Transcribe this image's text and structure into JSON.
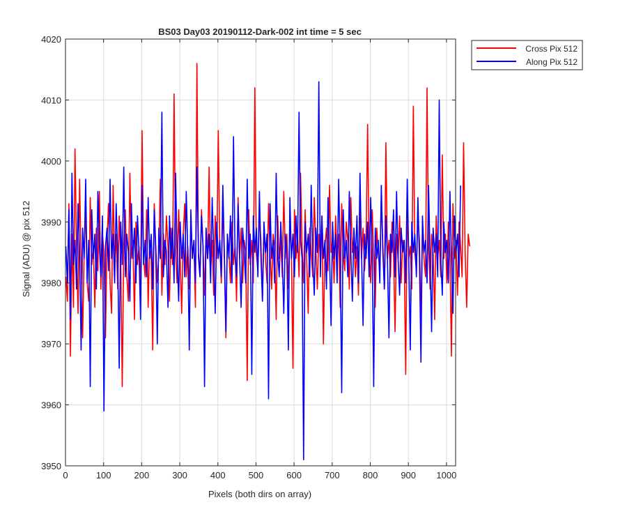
{
  "figure": {
    "background": "#ffffff"
  },
  "chart_data": {
    "type": "line",
    "title": "BS03 Day03 20190112-Dark-002 int time = 5 sec",
    "xlabel": "Pixels (both dirs on array)",
    "ylabel": "Signal (ADU) @ pix 512",
    "xlim": [
      0,
      1024
    ],
    "ylim": [
      3950,
      4020
    ],
    "xticks": [
      0,
      100,
      200,
      300,
      400,
      500,
      600,
      700,
      800,
      900,
      1000
    ],
    "yticks": [
      3950,
      3960,
      3970,
      3980,
      3990,
      4000,
      4010,
      4020
    ],
    "grid": true,
    "legend_position": "outside top-right",
    "series": [
      {
        "name": "Cross Pix 512",
        "color": "#ff0000",
        "x_start": 1,
        "x_step": 4,
        "values": [
          3981,
          3977,
          3993,
          3968,
          3988,
          3976,
          4002,
          3986,
          3975,
          3997,
          3984,
          3971,
          3985,
          3992,
          3980,
          3977,
          3994,
          3983,
          3986,
          3976,
          3989,
          3982,
          3995,
          3979,
          3988,
          3985,
          3971,
          3987,
          3993,
          3980,
          3975,
          3996,
          3983,
          3988,
          3979,
          3991,
          3984,
          3963,
          3986,
          3992,
          3981,
          3977,
          3998,
          3984,
          3987,
          3974,
          3990,
          3983,
          3986,
          3979,
          4005,
          3984,
          3981,
          3992,
          3976,
          3987,
          3984,
          3969,
          3993,
          3986,
          3980,
          3985,
          3997,
          3978,
          3988,
          3983,
          3991,
          3986,
          3977,
          3989,
          3983,
          4011,
          3985,
          3980,
          3992,
          3984,
          3975,
          3988,
          3993,
          3981,
          3986,
          3979,
          3990,
          3984,
          3987,
          3976,
          4016,
          3984,
          3981,
          3992,
          3986,
          3978,
          3989,
          3984,
          3999,
          3982,
          3987,
          3978,
          3991,
          3984,
          4005,
          3986,
          3980,
          3993,
          3984,
          3971,
          3988,
          3985,
          3980,
          3990,
          3983,
          3986,
          3977,
          3994,
          3984,
          3989,
          3980,
          3987,
          3985,
          3964,
          3992,
          3983,
          3987,
          3980,
          4012,
          3985,
          3982,
          3991,
          3987,
          3977,
          3989,
          3984,
          3980,
          3993,
          3985,
          3979,
          3988,
          3986,
          3974,
          3991,
          3984,
          3987,
          3981,
          3995,
          3984,
          3988,
          3979,
          3990,
          3985,
          3966,
          3992,
          3984,
          3988,
          3981,
          3998,
          3986,
          3980,
          3992,
          3984,
          3975,
          3989,
          3985,
          3981,
          3994,
          3986,
          3979,
          3988,
          3984,
          3991,
          3970,
          3986,
          3989,
          3982,
          3996,
          3985,
          3987,
          3980,
          3991,
          3984,
          3988,
          3976,
          3993,
          3985,
          3982,
          3990,
          3987,
          3979,
          3994,
          3985,
          3988,
          3981,
          3986,
          3978,
          3992,
          3984,
          3989,
          3982,
          3987,
          4006,
          3985,
          3980,
          3992,
          3984,
          3976,
          3989,
          3985,
          3982,
          3994,
          3986,
          3979,
          4003,
          3984,
          3987,
          3981,
          3990,
          3985,
          3972,
          3988,
          3984,
          3991,
          3980,
          3987,
          3985,
          3965,
          3993,
          3984,
          3986,
          3979,
          4009,
          3985,
          3982,
          3991,
          3987,
          3975,
          3989,
          3984,
          3981,
          4012,
          3986,
          3979,
          3988,
          3985,
          3974,
          3991,
          3984,
          3987,
          3981,
          4001,
          3984,
          3988,
          3980,
          3990,
          3985,
          3968,
          3993,
          3984,
          3987,
          3978,
          3990,
          3986,
          3981,
          4003,
          3985,
          3976,
          3988,
          3986
        ]
      },
      {
        "name": "Along Pix 512",
        "color": "#0000ff",
        "x_start": 1,
        "x_step": 4,
        "values": [
          3986,
          3980,
          3992,
          3974,
          3998,
          3983,
          3987,
          3979,
          3993,
          3985,
          3969,
          3989,
          3984,
          3997,
          3980,
          3987,
          3963,
          3992,
          3984,
          3988,
          3979,
          3995,
          3986,
          3981,
          3991,
          3959,
          3986,
          3989,
          3982,
          3997,
          3984,
          3988,
          3980,
          3993,
          3985,
          3966,
          3990,
          3983,
          3999,
          3981,
          3988,
          3985,
          3977,
          3993,
          3984,
          3989,
          3980,
          3991,
          3985,
          3974,
          3996,
          3983,
          3987,
          3981,
          3994,
          3984,
          3988,
          3979,
          3992,
          3985,
          3970,
          3989,
          3984,
          4008,
          3981,
          3987,
          3985,
          3976,
          3991,
          3984,
          3989,
          3980,
          3998,
          3985,
          3977,
          3990,
          3984,
          3988,
          3981,
          3995,
          3985,
          3969,
          3992,
          3984,
          3987,
          3980,
          3999,
          3985,
          3981,
          3991,
          3986,
          3963,
          3989,
          3984,
          3988,
          3980,
          3994,
          3985,
          3975,
          3990,
          3984,
          3987,
          3981,
          3996,
          3985,
          3972,
          3988,
          3984,
          3991,
          3980,
          4004,
          3985,
          3981,
          3993,
          3984,
          3976,
          3989,
          3985,
          3980,
          3997,
          3984,
          3988,
          3965,
          3991,
          3985,
          3989,
          3981,
          3995,
          3984,
          3977,
          3990,
          3985,
          3988,
          3961,
          3993,
          3984,
          3987,
          3980,
          3998,
          3985,
          3981,
          3990,
          3984,
          3975,
          3988,
          3985,
          3969,
          3994,
          3984,
          3988,
          3981,
          3991,
          3985,
          4008,
          3987,
          3984,
          3951,
          3990,
          3985,
          3988,
          3981,
          3996,
          3984,
          3978,
          3989,
          3985,
          4013,
          3981,
          3991,
          3984,
          3987,
          3979,
          3994,
          3985,
          3973,
          3990,
          3984,
          3988,
          3980,
          3997,
          3985,
          3962,
          3992,
          3984,
          3987,
          3981,
          3995,
          3985,
          3977,
          3989,
          3984,
          3991,
          3980,
          3998,
          3985,
          3973,
          3988,
          3984,
          3990,
          3981,
          3994,
          3985,
          3963,
          3989,
          3984,
          3987,
          3980,
          3996,
          3985,
          3979,
          3991,
          3984,
          3971,
          3988,
          3985,
          3992,
          3981,
          3995,
          3984,
          3978,
          3989,
          3985,
          3987,
          3980,
          3997,
          3984,
          3969,
          3990,
          3985,
          3988,
          3981,
          3994,
          3984,
          3967,
          3991,
          3985,
          3987,
          3980,
          3996,
          3984,
          3972,
          3989,
          3985,
          3988,
          3981,
          4010,
          3984,
          3978,
          3990,
          3985,
          3987,
          3980,
          3995,
          3984,
          3975,
          3991,
          3985,
          3988,
          3981,
          3996
        ]
      }
    ]
  }
}
